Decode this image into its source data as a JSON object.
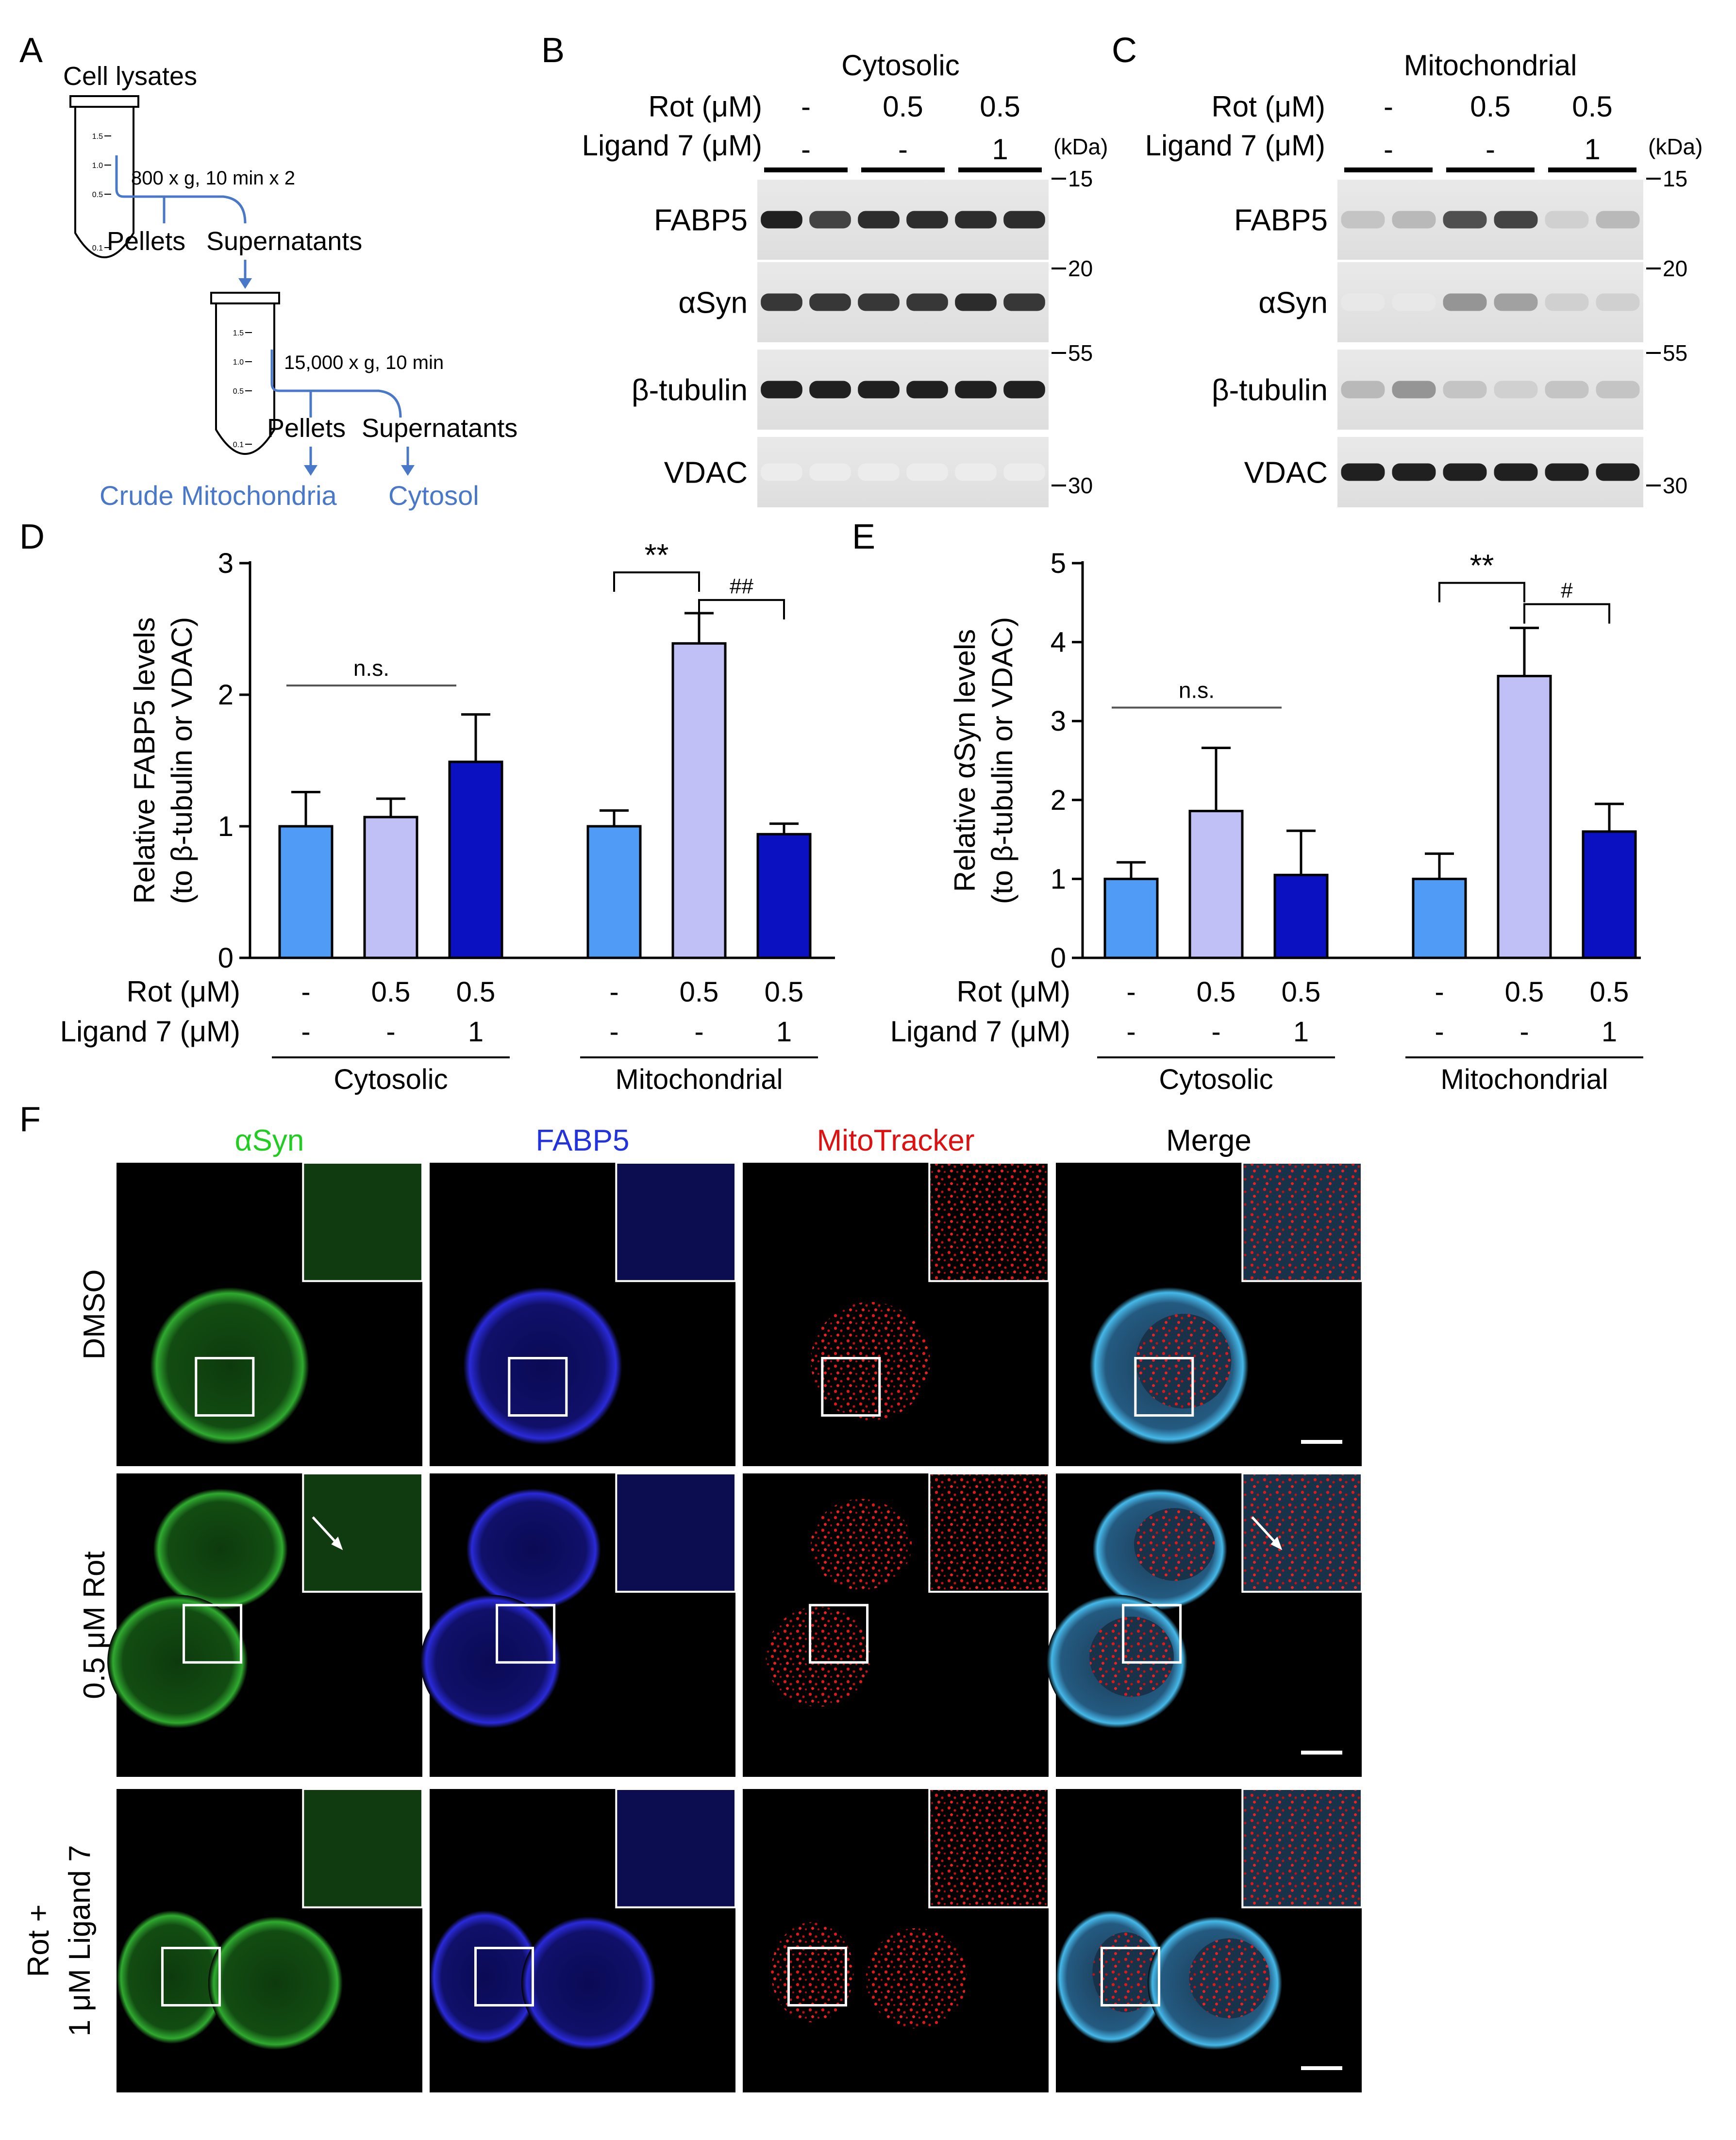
{
  "panel_a": {
    "letter": "A",
    "cell_lysates": "Cell lysates",
    "spin1": "800 x g, 10 min x 2",
    "pellets1": "Pellets",
    "supernatants1": "Supernatants",
    "spin2": "15,000 x g, 10 min",
    "pellets2": "Pellets",
    "supernatants2": "Supernatants",
    "crude_mito": "Crude Mitochondria",
    "cytosol": "Cytosol",
    "tube_marks": [
      "1.5",
      "1.0",
      "0.5",
      "0.1"
    ]
  },
  "panel_b": {
    "letter": "B",
    "title": "Cytosolic",
    "rot_label": "Rot (μM)",
    "ligand_label": "Ligand 7 (μM)",
    "rot_values": [
      "-",
      "0.5",
      "0.5"
    ],
    "ligand_values": [
      "-",
      "-",
      "1"
    ],
    "kda": "(kDa)",
    "markers": [
      "15",
      "20",
      "55",
      "30"
    ],
    "blots": [
      "FABP5",
      "αSyn",
      "β-tubulin",
      "VDAC"
    ]
  },
  "panel_c": {
    "letter": "C",
    "title": "Mitochondrial",
    "rot_label": "Rot (μM)",
    "ligand_label": "Ligand 7 (μM)",
    "rot_values": [
      "-",
      "0.5",
      "0.5"
    ],
    "ligand_values": [
      "-",
      "-",
      "1"
    ],
    "kda": "(kDa)",
    "markers": [
      "15",
      "20",
      "55",
      "30"
    ],
    "blots": [
      "FABP5",
      "αSyn",
      "β-tubulin",
      "VDAC"
    ]
  },
  "colors": {
    "control": "#4f9bf5",
    "rot": "#c0c0f7",
    "rot_ligand": "#0b10c0",
    "diagram_blue": "#4a78c8"
  },
  "chart_data": [
    {
      "type": "bar",
      "letter": "D",
      "ylabel": [
        "Relative FABP5 levels",
        "(to β-tubulin or VDAC)"
      ],
      "ylim": [
        0,
        3
      ],
      "yticks": [
        "0",
        "1",
        "2",
        "3"
      ],
      "groups": [
        "Cytosolic",
        "Mitochondrial"
      ],
      "row_labels": [
        "Rot (μM)",
        "Ligand 7 (μM)"
      ],
      "rot": [
        "-",
        "0.5",
        "0.5",
        "-",
        "0.5",
        "0.5"
      ],
      "ligand": [
        "-",
        "-",
        "1",
        "-",
        "-",
        "1"
      ],
      "values": [
        1.0,
        1.07,
        1.49,
        1.0,
        2.39,
        0.94
      ],
      "errors": [
        0.26,
        0.14,
        0.36,
        0.12,
        0.23,
        0.08
      ],
      "annotations": {
        "ns": "n.s.",
        "sig": "**",
        "sig2": "##"
      }
    },
    {
      "type": "bar",
      "letter": "E",
      "ylabel": [
        "Relative αSyn levels",
        "(to β-tubulin or VDAC)"
      ],
      "ylim": [
        0,
        5
      ],
      "yticks": [
        "0",
        "1",
        "2",
        "3",
        "4",
        "5"
      ],
      "groups": [
        "Cytosolic",
        "Mitochondrial"
      ],
      "row_labels": [
        "Rot (μM)",
        "Ligand 7 (μM)"
      ],
      "rot": [
        "-",
        "0.5",
        "0.5",
        "-",
        "0.5",
        "0.5"
      ],
      "ligand": [
        "-",
        "-",
        "1",
        "-",
        "-",
        "1"
      ],
      "values": [
        1.0,
        1.86,
        1.05,
        1.0,
        3.57,
        1.6
      ],
      "errors": [
        0.21,
        0.8,
        0.56,
        0.32,
        0.61,
        0.35
      ],
      "annotations": {
        "ns": "n.s.",
        "sig": "**",
        "sig2": "#"
      }
    }
  ],
  "panel_f": {
    "letter": "F",
    "columns": [
      "αSyn",
      "FABP5",
      "MitoTracker",
      "Merge"
    ],
    "column_colors": [
      "#22cc22",
      "#2233dd",
      "#dd1111",
      "#000000"
    ],
    "rows": [
      [
        "DMSO"
      ],
      [
        "0.5 μM Rot"
      ],
      [
        "Rot +",
        "1 μM Ligand 7"
      ]
    ]
  }
}
